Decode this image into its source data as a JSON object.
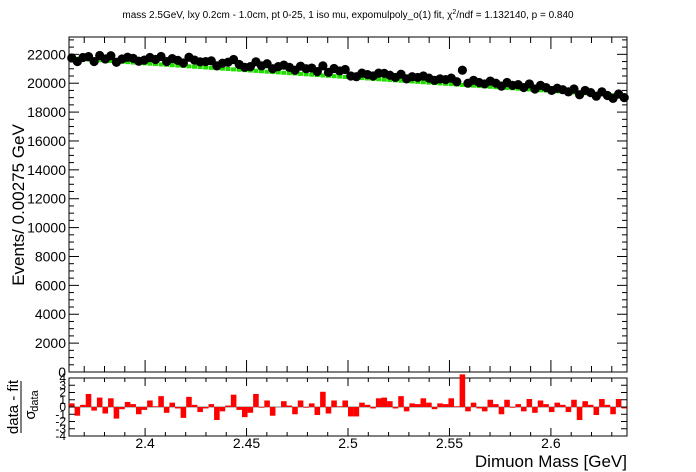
{
  "chart_data": {
    "type": "scatter",
    "title_parts": {
      "prefix": "mass 2.5GeV, lxy 0.2cm - 1.0cm, pt 0-25, 1 iso mu, expomulpoly_o(1) fit, ",
      "chi": "χ",
      "chi_sup": "2",
      "suffix": "/ndf = 1.132140, p = 0.840"
    },
    "xlabel": "Dimuon Mass [GeV]",
    "ylabel": "Events/ 0.00275 GeV",
    "xlim": [
      2.3625,
      2.6375
    ],
    "ylim": [
      0,
      23200
    ],
    "x_ticks": [
      "2.4",
      "2.45",
      "2.5",
      "2.55",
      "2.6"
    ],
    "x_tick_values": [
      2.4,
      2.45,
      2.5,
      2.55,
      2.6
    ],
    "y_ticks": [
      "0",
      "2000",
      "4000",
      "6000",
      "8000",
      "10000",
      "12000",
      "14000",
      "16000",
      "18000",
      "20000",
      "22000"
    ],
    "y_tick_values": [
      0,
      2000,
      4000,
      6000,
      8000,
      10000,
      12000,
      14000,
      16000,
      18000,
      20000,
      22000
    ],
    "bin_width": 0.00275,
    "fit_start": 21720,
    "fit_end": 19120,
    "series": [
      {
        "role": "data",
        "color": "#000000",
        "values": [
          21750,
          21500,
          21780,
          21840,
          21500,
          21920,
          21680,
          21900,
          21450,
          21680,
          21800,
          21720,
          21520,
          21600,
          21780,
          21640,
          21850,
          21500,
          21700,
          21580,
          21400,
          21800,
          21600,
          21480,
          21500,
          21550,
          21200,
          21380,
          21450,
          21640,
          21300,
          21100,
          21150,
          21480,
          21200,
          21350,
          21000,
          21150,
          21250,
          21100,
          20900,
          21180,
          21000,
          21050,
          20800,
          21200,
          20750,
          21020,
          20850,
          20950,
          20500,
          20450,
          20700,
          20600,
          20500,
          20700,
          20680,
          20550,
          20400,
          20620,
          20300,
          20450,
          20400,
          20500,
          20350,
          20200,
          20300,
          20250,
          20350,
          20100,
          20900,
          20000,
          20200,
          20050,
          19950,
          20150,
          20000,
          19800,
          20050,
          19850,
          19900,
          19700,
          19950,
          19600,
          19850,
          19700,
          19500,
          19650,
          19550,
          19400,
          19600,
          19200,
          19500,
          19350,
          19100,
          19400,
          19150,
          18950,
          19250,
          19000
        ]
      },
      {
        "role": "fit",
        "color": "#22dd00"
      }
    ],
    "residuals": {
      "ylabel_top": "data - fit",
      "ylabel_sigma": "σ",
      "ylabel_sub": "data",
      "ylim": [
        -4,
        4
      ],
      "y_ticks": [
        "-4",
        "-3",
        "-2",
        "-1",
        "0",
        "1",
        "2",
        "3",
        "4"
      ],
      "y_tick_values": [
        -4,
        -3,
        -2,
        -1,
        0,
        1,
        2,
        3,
        4
      ],
      "color": "#ff0000",
      "values": [
        0.5,
        -1.2,
        0.3,
        1.8,
        -0.5,
        1.3,
        -0.9,
        1.2,
        -1.6,
        -0.3,
        0.7,
        0.4,
        -1.0,
        -0.4,
        0.9,
        0.1,
        1.5,
        -0.8,
        0.6,
        -0.2,
        -1.5,
        1.4,
        0.3,
        -0.7,
        -0.2,
        0.4,
        -1.8,
        -0.6,
        0.2,
        1.7,
        -0.4,
        -1.4,
        -0.8,
        1.8,
        -0.1,
        0.9,
        -1.2,
        0.0,
        0.8,
        0.2,
        -1.0,
        0.9,
        -0.1,
        0.5,
        -1.1,
        2.1,
        -0.9,
        0.9,
        0.1,
        0.9,
        -1.3,
        -1.3,
        0.6,
        0.3,
        -0.2,
        1.2,
        1.3,
        0.8,
        -0.2,
        1.5,
        -0.6,
        0.5,
        0.4,
        1.2,
        0.6,
        -0.3,
        0.5,
        0.4,
        1.2,
        0.1,
        4.5,
        -0.6,
        0.6,
        -0.2,
        -0.6,
        1.0,
        0.4,
        -1.0,
        1.0,
        -0.1,
        0.4,
        -0.6,
        1.1,
        -0.8,
        0.9,
        0.4,
        -0.7,
        0.6,
        0.3,
        -0.7,
        1.0,
        -1.8,
        0.8,
        0.3,
        -1.1,
        1.1,
        0.3,
        -1.0,
        1.1,
        -0.2
      ]
    }
  }
}
